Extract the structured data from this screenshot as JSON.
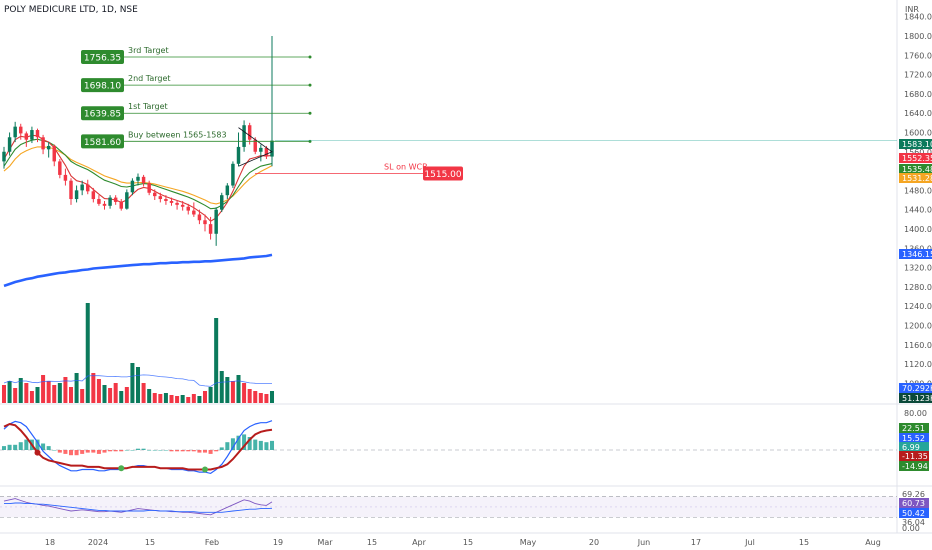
{
  "header": {
    "symbol": "POLY MEDICURE LTD, 1D, NSE",
    "currency": "INR"
  },
  "colors": {
    "up": "#0b7a5c",
    "down": "#f23645",
    "target": "#2e8b2e",
    "sl": "#f23645",
    "ma_long": "#2962ff",
    "ema_fast": "#f5a623",
    "ema_slow": "#d93636",
    "ema_mid": "#2e8b2e"
  },
  "chart_data": {
    "type": "candlestick",
    "price_axis": {
      "ticks": [
        "1840.00",
        "1800.00",
        "1760.00",
        "1720.00",
        "1680.00",
        "1640.00",
        "1600.00",
        "1560.00",
        "1520.00",
        "1480.00",
        "1440.00",
        "1400.00",
        "1360.00",
        "1320.00",
        "1280.00",
        "1240.00",
        "1200.00",
        "1160.00",
        "1120.00",
        "1080.00"
      ],
      "ylim": [
        1060,
        1860
      ]
    },
    "time_axis": {
      "ticks": [
        "18",
        "2024",
        "15",
        "Feb",
        "19",
        "Mar",
        "15",
        "Apr",
        "15",
        "May",
        "20",
        "Jun",
        "17",
        "Jul",
        "15",
        "Aug"
      ]
    },
    "candles": [
      [
        1540,
        1570,
        1525,
        1560
      ],
      [
        1560,
        1600,
        1552,
        1590
      ],
      [
        1590,
        1622,
        1580,
        1612
      ],
      [
        1612,
        1618,
        1585,
        1598
      ],
      [
        1598,
        1602,
        1570,
        1585
      ],
      [
        1585,
        1612,
        1578,
        1605
      ],
      [
        1605,
        1608,
        1580,
        1590
      ],
      [
        1590,
        1595,
        1555,
        1565
      ],
      [
        1565,
        1580,
        1548,
        1572
      ],
      [
        1572,
        1575,
        1530,
        1540
      ],
      [
        1540,
        1545,
        1505,
        1512
      ],
      [
        1512,
        1525,
        1490,
        1500
      ],
      [
        1500,
        1505,
        1450,
        1462
      ],
      [
        1462,
        1490,
        1455,
        1480
      ],
      [
        1480,
        1500,
        1470,
        1492
      ],
      [
        1492,
        1502,
        1472,
        1478
      ],
      [
        1478,
        1485,
        1455,
        1462
      ],
      [
        1462,
        1470,
        1448,
        1452
      ],
      [
        1452,
        1458,
        1440,
        1448
      ],
      [
        1448,
        1470,
        1442,
        1465
      ],
      [
        1465,
        1470,
        1450,
        1456
      ],
      [
        1456,
        1462,
        1438,
        1442
      ],
      [
        1442,
        1482,
        1440,
        1476
      ],
      [
        1476,
        1505,
        1470,
        1500
      ],
      [
        1500,
        1515,
        1490,
        1508
      ],
      [
        1508,
        1512,
        1488,
        1495
      ],
      [
        1495,
        1500,
        1470,
        1475
      ],
      [
        1475,
        1482,
        1460,
        1468
      ],
      [
        1468,
        1475,
        1455,
        1462
      ],
      [
        1462,
        1470,
        1450,
        1458
      ],
      [
        1458,
        1465,
        1448,
        1454
      ],
      [
        1454,
        1460,
        1440,
        1450
      ],
      [
        1450,
        1458,
        1438,
        1446
      ],
      [
        1446,
        1452,
        1430,
        1438
      ],
      [
        1438,
        1455,
        1425,
        1430
      ],
      [
        1430,
        1440,
        1410,
        1418
      ],
      [
        1418,
        1430,
        1395,
        1410
      ],
      [
        1410,
        1425,
        1378,
        1390
      ],
      [
        1390,
        1445,
        1365,
        1440
      ],
      [
        1440,
        1475,
        1435,
        1470
      ],
      [
        1470,
        1495,
        1462,
        1490
      ],
      [
        1490,
        1540,
        1485,
        1535
      ],
      [
        1535,
        1600,
        1530,
        1570
      ],
      [
        1570,
        1625,
        1560,
        1615
      ],
      [
        1615,
        1620,
        1575,
        1585
      ],
      [
        1585,
        1590,
        1555,
        1560
      ],
      [
        1560,
        1575,
        1540,
        1568
      ],
      [
        1568,
        1572,
        1545,
        1550
      ],
      [
        1550,
        1800,
        1530,
        1583
      ]
    ],
    "volume": [
      {
        "dir": "down",
        "h": 0.18
      },
      {
        "dir": "up",
        "h": 0.22
      },
      {
        "dir": "down",
        "h": 0.15
      },
      {
        "dir": "up",
        "h": 0.25
      },
      {
        "dir": "down",
        "h": 0.2
      },
      {
        "dir": "down",
        "h": 0.12
      },
      {
        "dir": "up",
        "h": 0.16
      },
      {
        "dir": "down",
        "h": 0.28
      },
      {
        "dir": "down",
        "h": 0.22
      },
      {
        "dir": "down",
        "h": 0.18
      },
      {
        "dir": "up",
        "h": 0.2
      },
      {
        "dir": "down",
        "h": 0.26
      },
      {
        "dir": "down",
        "h": 0.16
      },
      {
        "dir": "up",
        "h": 0.3
      },
      {
        "dir": "down",
        "h": 0.14
      },
      {
        "dir": "up",
        "h": 1.0
      },
      {
        "dir": "down",
        "h": 0.3
      },
      {
        "dir": "down",
        "h": 0.24
      },
      {
        "dir": "up",
        "h": 0.18
      },
      {
        "dir": "down",
        "h": 0.15
      },
      {
        "dir": "down",
        "h": 0.2
      },
      {
        "dir": "up",
        "h": 0.12
      },
      {
        "dir": "down",
        "h": 0.16
      },
      {
        "dir": "up",
        "h": 0.4
      },
      {
        "dir": "up",
        "h": 0.36
      },
      {
        "dir": "down",
        "h": 0.2
      },
      {
        "dir": "up",
        "h": 0.14
      },
      {
        "dir": "down",
        "h": 0.1
      },
      {
        "dir": "down",
        "h": 0.09
      },
      {
        "dir": "up",
        "h": 0.1
      },
      {
        "dir": "down",
        "h": 0.08
      },
      {
        "dir": "down",
        "h": 0.07
      },
      {
        "dir": "up",
        "h": 0.08
      },
      {
        "dir": "down",
        "h": 0.06
      },
      {
        "dir": "down",
        "h": 0.09
      },
      {
        "dir": "up",
        "h": 0.07
      },
      {
        "dir": "down",
        "h": 0.12
      },
      {
        "dir": "up",
        "h": 0.16
      },
      {
        "dir": "up",
        "h": 0.85
      },
      {
        "dir": "up",
        "h": 0.32
      },
      {
        "dir": "up",
        "h": 0.26
      },
      {
        "dir": "down",
        "h": 0.22
      },
      {
        "dir": "up",
        "h": 0.28
      },
      {
        "dir": "down",
        "h": 0.2
      },
      {
        "dir": "down",
        "h": 0.14
      },
      {
        "dir": "down",
        "h": 0.12
      },
      {
        "dir": "down",
        "h": 0.1
      },
      {
        "dir": "down",
        "h": 0.09
      },
      {
        "dir": "up",
        "h": 0.12
      }
    ],
    "lines": {
      "ema_fast": [
        1545,
        1565,
        1585,
        1592,
        1590,
        1594,
        1593,
        1585,
        1580,
        1568,
        1550,
        1532,
        1510,
        1500,
        1497,
        1492,
        1482,
        1472,
        1463,
        1462,
        1460,
        1455,
        1460,
        1472,
        1482,
        1486,
        1484,
        1478,
        1472,
        1467,
        1463,
        1459,
        1455,
        1450,
        1444,
        1436,
        1428,
        1416,
        1423,
        1438,
        1455,
        1478,
        1505,
        1530,
        1545,
        1548,
        1552,
        1551,
        1552.35
      ],
      "ema_mid": [
        1530,
        1548,
        1565,
        1575,
        1580,
        1584,
        1586,
        1583,
        1580,
        1573,
        1563,
        1553,
        1540,
        1533,
        1528,
        1523,
        1516,
        1508,
        1501,
        1497,
        1493,
        1488,
        1487,
        1489,
        1492,
        1494,
        1493,
        1490,
        1486,
        1482,
        1478,
        1474,
        1470,
        1466,
        1461,
        1455,
        1449,
        1442,
        1443,
        1449,
        1457,
        1470,
        1488,
        1505,
        1517,
        1524,
        1530,
        1533,
        1535.48
      ],
      "ema_slow": [
        1520,
        1530,
        1545,
        1556,
        1562,
        1567,
        1570,
        1570,
        1569,
        1566,
        1560,
        1553,
        1544,
        1538,
        1533,
        1528,
        1522,
        1516,
        1510,
        1506,
        1502,
        1497,
        1495,
        1495,
        1496,
        1496,
        1495,
        1493,
        1490,
        1487,
        1484,
        1481,
        1478,
        1474,
        1470,
        1465,
        1460,
        1454,
        1452,
        1455,
        1460,
        1468,
        1480,
        1493,
        1504,
        1512,
        1519,
        1525,
        1531.28
      ],
      "ma_long": [
        1282,
        1286,
        1290,
        1293,
        1296,
        1298,
        1301,
        1303,
        1305,
        1307,
        1309,
        1310,
        1312,
        1313,
        1315,
        1316,
        1318,
        1319,
        1320,
        1321,
        1322,
        1323,
        1324,
        1325,
        1326,
        1327,
        1327,
        1328,
        1329,
        1329,
        1330,
        1330,
        1331,
        1331,
        1332,
        1332,
        1333,
        1333,
        1334,
        1335,
        1336,
        1337,
        1338,
        1339,
        1341,
        1342,
        1343,
        1344,
        1346.15
      ]
    },
    "levels": [
      {
        "label": "3rd Target",
        "value": 1756.35,
        "value_text": "1756.35"
      },
      {
        "label": "2nd Target",
        "value": 1698.1,
        "value_text": "1698.10"
      },
      {
        "label": "1st Target",
        "value": 1639.85,
        "value_text": "1639.85"
      },
      {
        "label": "Buy between 1565-1583",
        "value": 1581.6,
        "value_text": "1581.60"
      }
    ],
    "stop_loss": {
      "label": "SL on WCB",
      "value": 1515.0,
      "value_text": "1515.00"
    },
    "price_badges": [
      {
        "text": "1583.10",
        "value": 1583.1,
        "color": "#0b7a5c"
      },
      {
        "text": "1552.35",
        "value": 1552.35,
        "color": "#f23645"
      },
      {
        "text": "1535.48",
        "value": 1535.48,
        "color": "#2e8b2e"
      },
      {
        "text": "1531.28",
        "value": 1531.28,
        "color": "#f5a623"
      },
      {
        "text": "1346.15",
        "value": 1346.15,
        "color": "#2962ff"
      }
    ],
    "volume_badges": [
      {
        "text": "70.292K",
        "color": "#2962ff"
      },
      {
        "text": "51.123K",
        "color": "#0b4a3a"
      }
    ],
    "macd": {
      "axis_top": "80.00",
      "badges": [
        {
          "text": "22.51",
          "color": "#2e8b2e"
        },
        {
          "text": "15.52",
          "color": "#2962ff"
        },
        {
          "text": "6.99",
          "color": "#26a69a"
        },
        {
          "text": "-11.35",
          "color": "#b71c1c"
        },
        {
          "text": "-14.94",
          "color": "#2e8b2e"
        }
      ],
      "signal": [
        18,
        20,
        19,
        15,
        10,
        4,
        -2,
        -6,
        -8,
        -9,
        -10,
        -11,
        -12,
        -12,
        -12,
        -13,
        -13,
        -13,
        -14,
        -14,
        -14,
        -14,
        -14,
        -13,
        -13,
        -13,
        -13,
        -13,
        -14,
        -14,
        -14,
        -14,
        -14,
        -15,
        -15,
        -15,
        -15,
        -15,
        -14,
        -13,
        -11,
        -7,
        -2,
        3,
        8,
        12,
        14,
        15,
        15.52
      ],
      "macd": [
        16,
        20,
        22,
        21,
        18,
        12,
        6,
        -1,
        -5,
        -9,
        -12,
        -14,
        -16,
        -16,
        -15,
        -15,
        -15,
        -16,
        -16,
        -15,
        -15,
        -15,
        -14,
        -13,
        -12,
        -12,
        -13,
        -13,
        -14,
        -14,
        -15,
        -15,
        -15,
        -16,
        -16,
        -17,
        -17,
        -18,
        -15,
        -11,
        -5,
        2,
        9,
        15,
        18,
        20,
        21,
        21,
        22.51
      ],
      "hist": [
        3,
        4,
        4,
        6,
        8,
        8,
        8,
        5,
        3,
        0,
        -2,
        -3,
        -4,
        -4,
        -3,
        -2,
        -2,
        -3,
        -2,
        -1,
        -1,
        -1,
        0,
        0,
        1,
        1,
        0,
        0,
        0,
        0,
        -1,
        -1,
        -1,
        -1,
        -1,
        -2,
        -2,
        -3,
        -1,
        2,
        6,
        9,
        11,
        12,
        10,
        8,
        7,
        6,
        7
      ]
    },
    "rsi": {
      "badges": [
        {
          "text": "69.26",
          "color": null
        },
        {
          "text": "60.73",
          "color": "#7e57c2"
        },
        {
          "text": "50.42",
          "color": "#2962ff"
        },
        {
          "text": "36.04",
          "color": null
        }
      ],
      "bottom_tick": "0.00",
      "rsi": [
        62,
        64,
        66,
        63,
        60,
        58,
        57,
        55,
        54,
        52,
        50,
        48,
        46,
        47,
        48,
        47,
        46,
        45,
        45,
        46,
        45,
        44,
        46,
        48,
        50,
        49,
        48,
        47,
        46,
        46,
        45,
        45,
        44,
        44,
        43,
        42,
        41,
        40,
        44,
        48,
        52,
        56,
        60,
        64,
        62,
        58,
        56,
        55,
        60.73
      ],
      "rsi_ma": [
        58,
        58,
        59,
        59,
        58,
        58,
        57,
        57,
        56,
        55,
        54,
        53,
        52,
        51,
        50,
        49,
        48,
        47,
        47,
        46,
        46,
        46,
        46,
        46,
        46,
        46,
        47,
        47,
        46,
        46,
        46,
        45,
        45,
        45,
        45,
        44,
        44,
        44,
        44,
        44,
        45,
        46,
        47,
        48,
        49,
        49,
        50,
        50,
        50.42
      ]
    }
  }
}
